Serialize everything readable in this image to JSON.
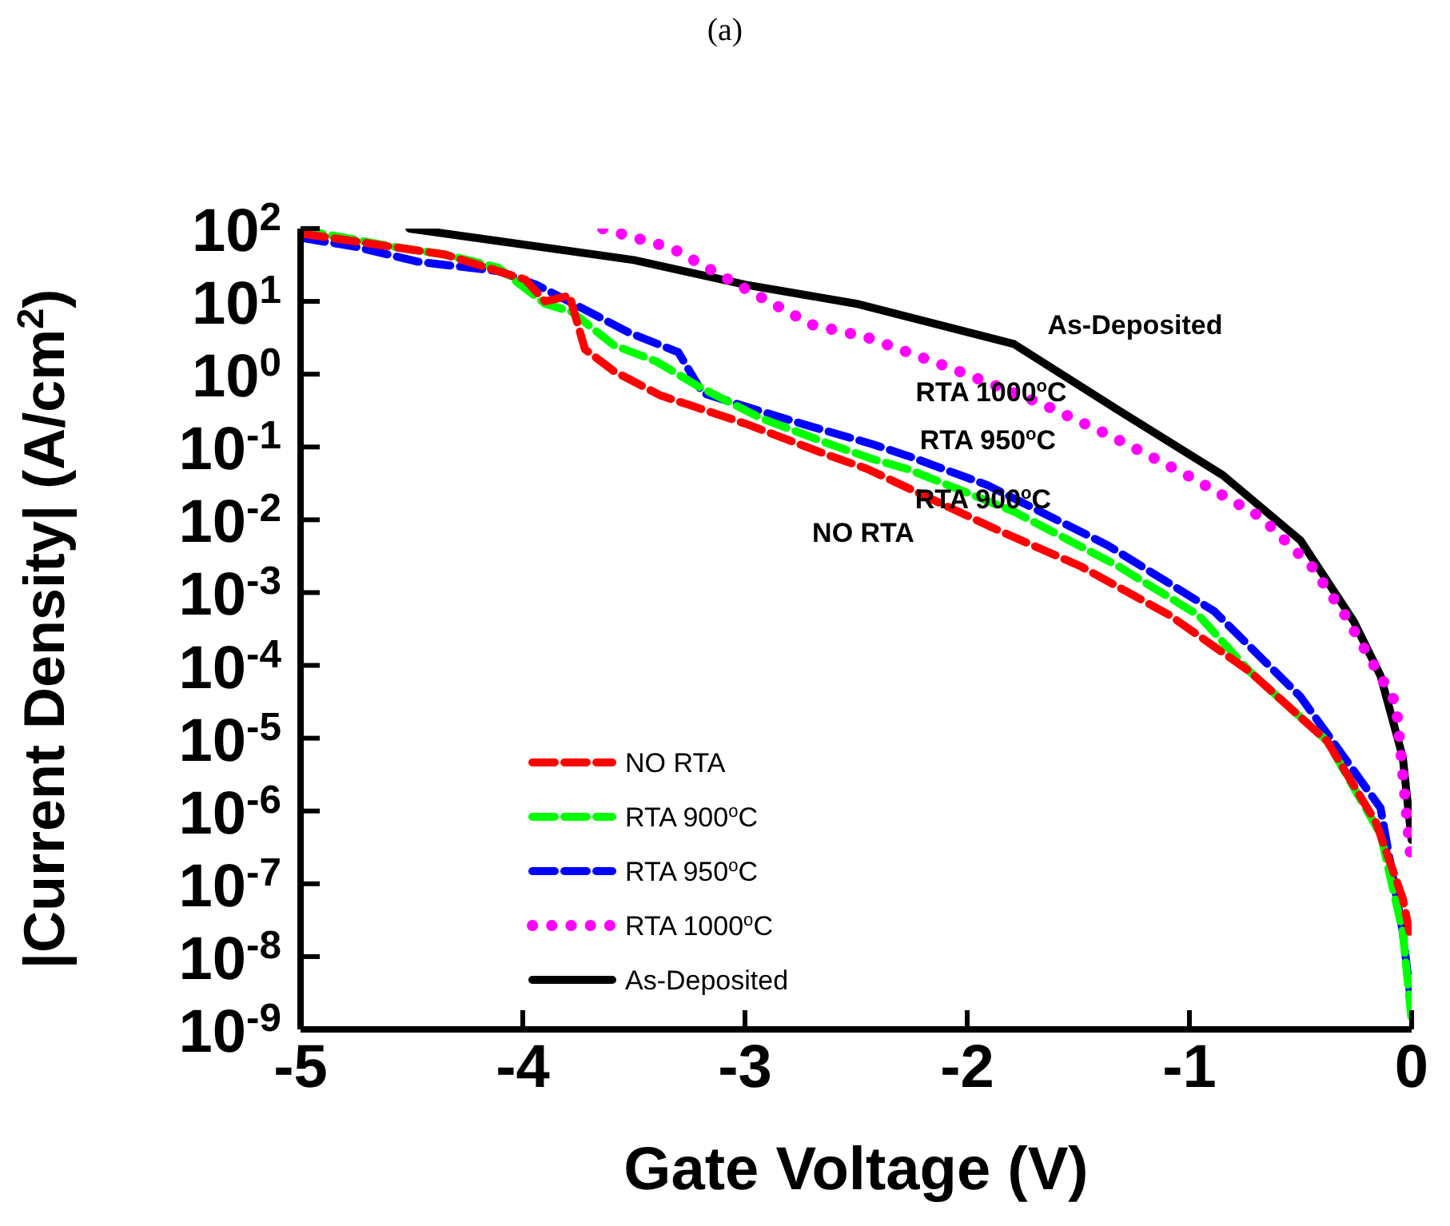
{
  "chart_data": {
    "type": "line",
    "title": "(a)",
    "xlabel": "Gate Voltage (V)",
    "ylabel": "|Current Density| (A/cm$^{2}$)",
    "log": "y",
    "grid": false,
    "legend": "bottom left",
    "marker": "none",
    "xlim": [
      -5,
      0
    ],
    "xticks": [
      -5,
      -4,
      -3,
      -2,
      -1,
      0
    ],
    "ylim": [
      1e-09,
      100
    ],
    "yticks": [
      {
        "value": 1e-09,
        "label": "10$^{-9}$"
      },
      {
        "value": 1e-08,
        "label": "10$^{-8}$"
      },
      {
        "value": 1e-07,
        "label": "10$^{-7}$"
      },
      {
        "value": 1e-06,
        "label": "10$^{-6}$"
      },
      {
        "value": 1e-05,
        "label": "10$^{-5}$"
      },
      {
        "value": 0.0001,
        "label": "10$^{-4}$"
      },
      {
        "value": 0.001,
        "label": "10$^{-3}$"
      },
      {
        "value": 0.01,
        "label": "10$^{-2}$"
      },
      {
        "value": 0.1,
        "label": "10$^{-1}$"
      },
      {
        "value": 1,
        "label": "10$^{0}$"
      },
      {
        "value": 10,
        "label": "10$^{1}$"
      },
      {
        "value": 100,
        "label": "10$^{2}$"
      }
    ],
    "series": [
      {
        "name": "NO RTA",
        "color": "#ff0000",
        "line_style": "dashed",
        "x": [
          -4.99,
          -4.35,
          -3.99,
          -3.9,
          -3.79,
          -3.72,
          -3.59,
          -3.38,
          -3.23,
          -3.0,
          -2.62,
          -2.45,
          -1.87,
          -1.49,
          -1.09,
          -0.73,
          -0.38,
          -0.16,
          -0.04,
          -0.01
        ],
        "values": [
          85,
          44,
          20,
          10,
          12,
          2.2,
          1.1,
          0.51,
          0.36,
          0.21,
          0.076,
          0.05,
          0.0074,
          0.0023,
          0.00049,
          8.3e-05,
          9.1e-06,
          6.9e-07,
          6.3e-08,
          2.2e-08
        ]
      },
      {
        "name": "RTA 900$^{o}$C",
        "color": "#00ff00",
        "line_style": "dashed",
        "x": [
          -5,
          -4.58,
          -4.35,
          -4.11,
          -3.9,
          -3.78,
          -3.59,
          -3.4,
          -3.21,
          -2.93,
          -2.62,
          -2.43,
          -2.27,
          -1.79,
          -1.32,
          -0.96,
          -0.73,
          -0.38,
          -0.14,
          -0.04,
          0
        ],
        "values": [
          97,
          56,
          44,
          29,
          9.3,
          7.2,
          2.5,
          1.5,
          0.68,
          0.25,
          0.11,
          0.069,
          0.05,
          0.013,
          0.0023,
          0.00049,
          8.3e-05,
          9.1e-06,
          4.8e-07,
          2.2e-08,
          1.3e-09
        ]
      },
      {
        "name": "RTA 950$^{o}$C",
        "color": "#0000ff",
        "line_style": "dashed",
        "x": [
          -4.99,
          -4.75,
          -4.47,
          -4.11,
          -3.94,
          -3.76,
          -3.52,
          -3.3,
          -3.19,
          -2.93,
          -2.7,
          -2.43,
          -2.27,
          -1.91,
          -1.37,
          -0.89,
          -0.5,
          -0.14,
          -0.04,
          0
        ],
        "values": [
          74,
          56,
          35,
          26,
          17,
          8.9,
          3.7,
          2.0,
          0.55,
          0.31,
          0.19,
          0.11,
          0.076,
          0.03,
          0.0045,
          0.00056,
          3.7e-05,
          1.1e-06,
          2.2e-08,
          2e-09
        ]
      },
      {
        "name": "RTA 1000$^{o}$C",
        "color": "#ff00ff",
        "line_style": "dotted",
        "x": [
          -3.64,
          -3.33,
          -3.0,
          -2.7,
          -2.45,
          -2.1,
          -1.67,
          -1.35,
          -1.01,
          -0.68,
          -0.45,
          -0.3,
          -0.07,
          0
        ],
        "values": [
          100,
          54,
          15,
          4.8,
          3.2,
          1.3,
          0.4,
          0.14,
          0.041,
          0.011,
          0.0023,
          0.00049,
          3e-05,
          1.7e-07
        ]
      },
      {
        "name": "As-Deposited",
        "color": "#000000",
        "line_style": "solid",
        "x": [
          -4.51,
          -3.5,
          -3.0,
          -2.5,
          -1.79,
          -1.32,
          -0.85,
          -0.5,
          -0.26,
          -0.14,
          -0.04,
          0
        ],
        "values": [
          100,
          37,
          17,
          9.3,
          2.6,
          0.32,
          0.041,
          0.0052,
          0.0004,
          7.2e-05,
          5.5e-06,
          4e-07
        ]
      }
    ],
    "annotations": [
      "As-Deposited",
      "RTA 1000$^{o}$C",
      "RTA 950$^{o}$C",
      "RTA 900$^{o}$C",
      "NO RTA"
    ]
  }
}
